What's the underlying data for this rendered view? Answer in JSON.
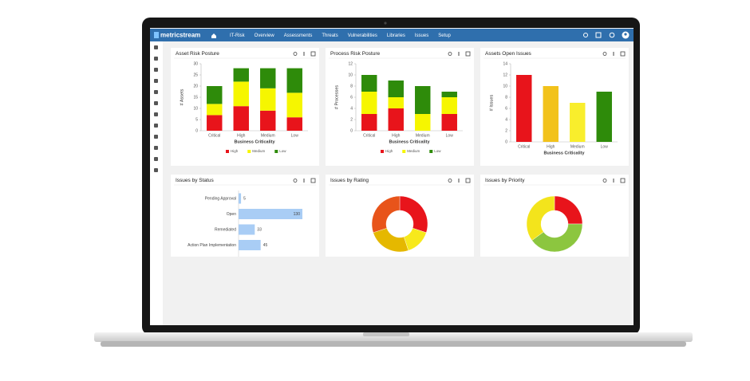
{
  "nav": {
    "logo": "metricstream",
    "items": [
      "IT-Risk",
      "Overview",
      "Assessments",
      "Threats",
      "Vulnerabilities",
      "Libraries",
      "Issues",
      "Setup"
    ]
  },
  "widgets": [
    {
      "title": "Asset Risk Posture",
      "chart": {
        "type": "bar",
        "stacked": true,
        "grid": false,
        "legend": true,
        "y_label": "# Assets",
        "x_label": "Business Criticality",
        "categories": [
          "Critical",
          "High",
          "Medium",
          "Low"
        ],
        "ylim": [
          0,
          30
        ],
        "yticks": [
          0,
          5,
          10,
          15,
          20,
          25,
          30
        ],
        "series": [
          {
            "name": "High",
            "color": "#e8141b",
            "values": [
              7,
              11,
              9,
              6
            ]
          },
          {
            "name": "Medium",
            "color": "#f6f600",
            "values": [
              5,
              11,
              10,
              11
            ]
          },
          {
            "name": "Low",
            "color": "#2e8b0a",
            "values": [
              8,
              6,
              9,
              11
            ]
          }
        ]
      }
    },
    {
      "title": "Process Risk Posture",
      "chart": {
        "type": "bar",
        "stacked": true,
        "grid": false,
        "legend": true,
        "y_label": "# Processes",
        "x_label": "Business Criticality",
        "categories": [
          "Critical",
          "High",
          "Medium",
          "Low"
        ],
        "ylim": [
          0,
          12
        ],
        "yticks": [
          0,
          2,
          4,
          6,
          8,
          10,
          12
        ],
        "series": [
          {
            "name": "High",
            "color": "#e8141b",
            "values": [
              3,
              4,
              0,
              3
            ]
          },
          {
            "name": "Medium",
            "color": "#f6f600",
            "values": [
              4,
              2,
              3,
              3
            ]
          },
          {
            "name": "Low",
            "color": "#2e8b0a",
            "values": [
              3,
              3,
              5,
              1
            ]
          }
        ]
      }
    },
    {
      "title": "Assets Open Issues",
      "chart": {
        "type": "bar",
        "grid": false,
        "y_label": "# Issues",
        "x_label": "Business Criticality",
        "categories": [
          "Critical",
          "High",
          "Medium",
          "Low"
        ],
        "values": [
          12,
          10,
          7,
          9
        ],
        "colors": [
          "#e8141b",
          "#f2c21b",
          "#f9ee2c",
          "#2e8b0a"
        ],
        "ylim": [
          0,
          14
        ],
        "yticks": [
          0,
          2,
          4,
          6,
          8,
          10,
          12,
          14
        ]
      }
    },
    {
      "title": "Issues by Status",
      "chart": {
        "type": "bar",
        "orientation": "horizontal",
        "color": "#a9cdf5",
        "categories": [
          "Pending Approval",
          "Open",
          "Remediated",
          "Action Plan Implementation"
        ],
        "values": [
          5,
          130,
          33,
          45
        ]
      }
    },
    {
      "title": "Issues by Rating",
      "chart": {
        "type": "pie",
        "donut": true,
        "values": [
          30,
          15,
          25,
          30
        ],
        "colors": [
          "#e8141b",
          "#f7e91c",
          "#e5b800",
          "#e8541a"
        ]
      }
    },
    {
      "title": "Issues by Priority",
      "chart": {
        "type": "pie",
        "donut": true,
        "values": [
          25,
          40,
          35
        ],
        "colors": [
          "#e8141b",
          "#8cc63f",
          "#f3e41c"
        ]
      }
    }
  ]
}
